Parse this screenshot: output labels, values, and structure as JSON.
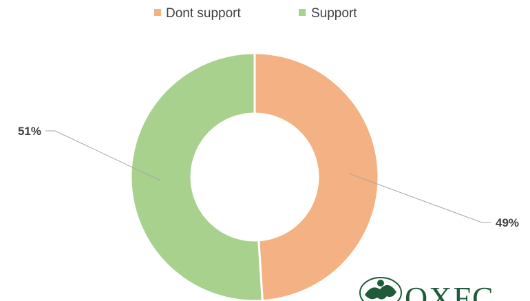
{
  "chart_data": {
    "type": "pie",
    "donut": true,
    "title": "",
    "legend_position": "top",
    "series": [
      {
        "name": "Dont support",
        "value": 49,
        "label": "49%",
        "color": "#f4b183"
      },
      {
        "name": "Support",
        "value": 51,
        "label": "51%",
        "color": "#a9d18e"
      }
    ]
  },
  "logo": {
    "text": "OXFC"
  }
}
